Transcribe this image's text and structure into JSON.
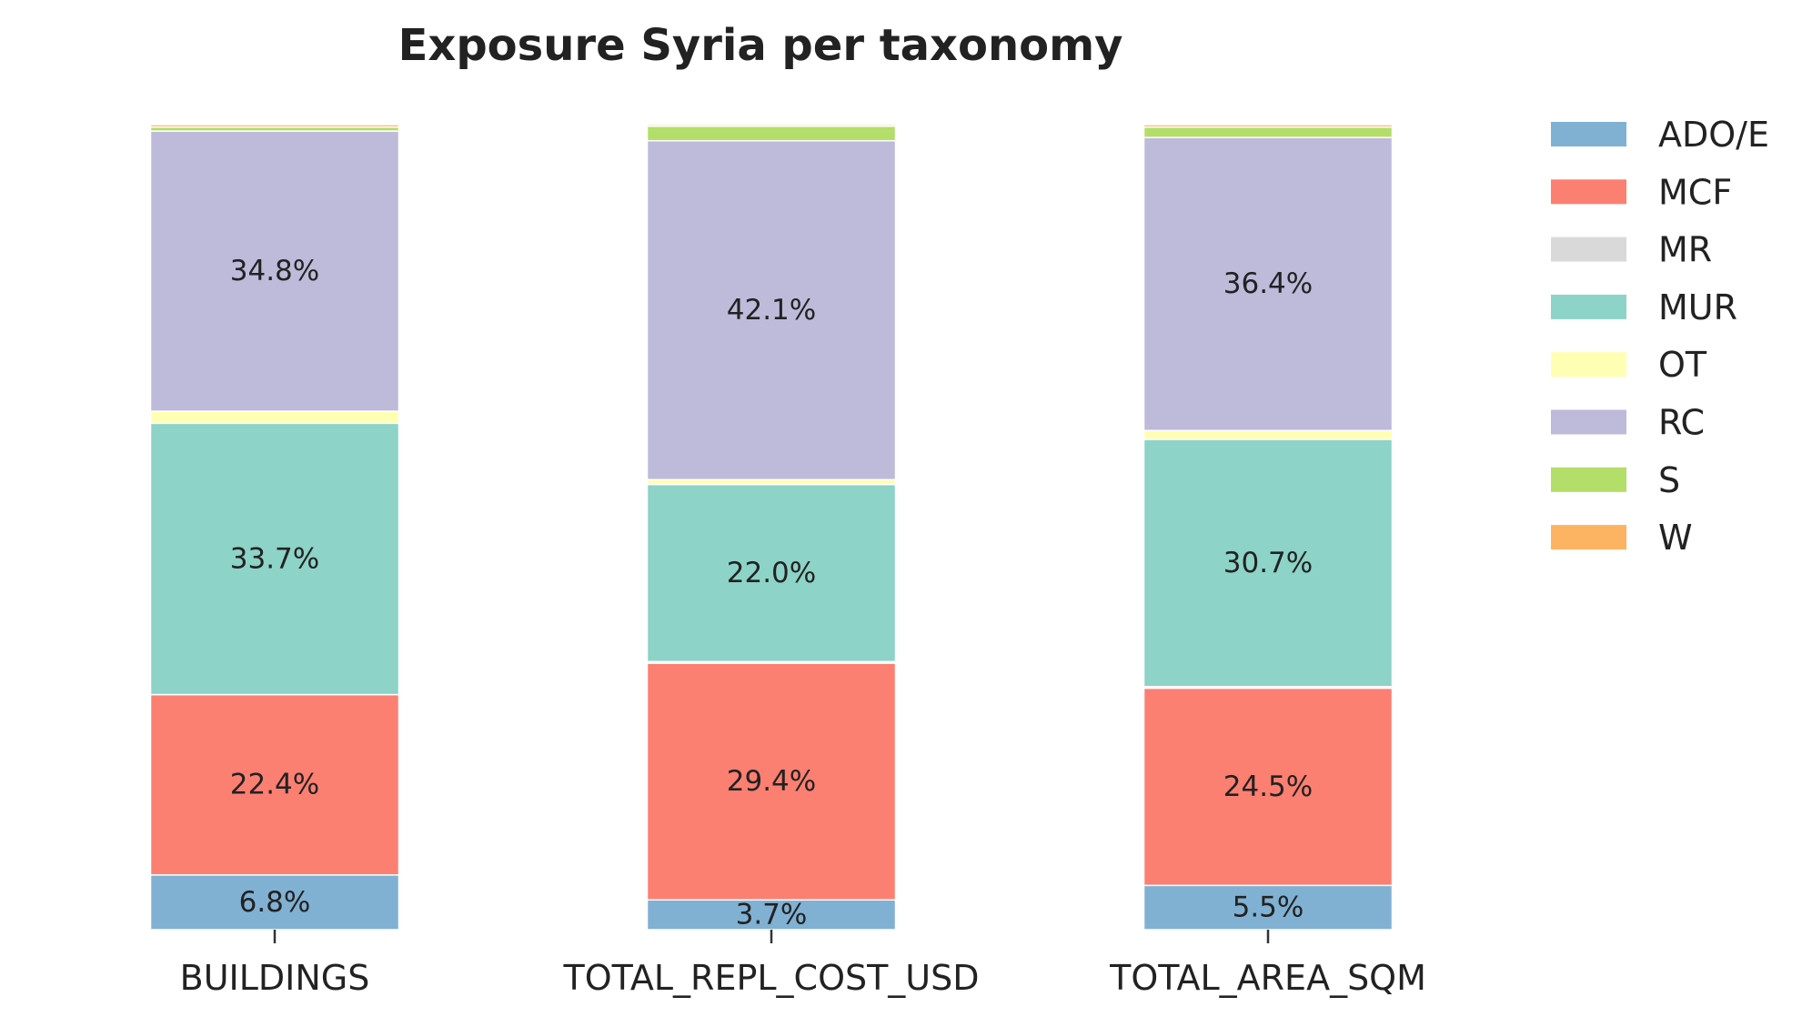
{
  "chart_data": {
    "type": "bar",
    "stacked": true,
    "normalized": true,
    "title": "Exposure Syria per taxonomy",
    "xlabel": "",
    "ylabel": "",
    "ylim": [
      0,
      100
    ],
    "grid": false,
    "legend_position": "top-right",
    "categories": [
      "BUILDINGS",
      "TOTAL_REPL_COST_USD",
      "TOTAL_AREA_SQM"
    ],
    "series": [
      {
        "name": "ADO/E",
        "color": "#80b1d3",
        "values": [
          6.8,
          3.7,
          5.5
        ],
        "labels": [
          "6.8%",
          "3.7%",
          "5.5%"
        ]
      },
      {
        "name": "MCF",
        "color": "#fb8072",
        "values": [
          22.4,
          29.4,
          24.5
        ],
        "labels": [
          "22.4%",
          "29.4%",
          "24.5%"
        ]
      },
      {
        "name": "MR",
        "color": "#d9d9d9",
        "values": [
          0.0,
          0.2,
          0.2
        ],
        "labels": [
          "",
          "",
          ""
        ]
      },
      {
        "name": "MUR",
        "color": "#8dd3c7",
        "values": [
          33.7,
          22.0,
          30.7
        ],
        "labels": [
          "33.7%",
          "22.0%",
          "30.7%"
        ]
      },
      {
        "name": "OT",
        "color": "#ffffb3",
        "values": [
          1.5,
          0.6,
          1.1
        ],
        "labels": [
          "",
          "",
          ""
        ]
      },
      {
        "name": "RC",
        "color": "#bebada",
        "values": [
          34.8,
          42.1,
          36.4
        ],
        "labels": [
          "34.8%",
          "42.1%",
          "36.4%"
        ]
      },
      {
        "name": "S",
        "color": "#b3de69",
        "values": [
          0.5,
          1.8,
          1.3
        ],
        "labels": [
          "",
          "",
          ""
        ]
      },
      {
        "name": "W",
        "color": "#fdb462",
        "values": [
          0.3,
          0.2,
          0.3
        ],
        "labels": [
          "",
          "",
          ""
        ]
      }
    ]
  }
}
